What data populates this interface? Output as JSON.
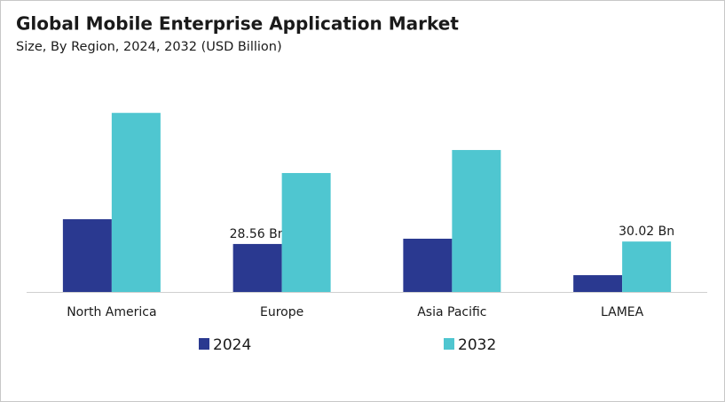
{
  "chart_data": {
    "type": "bar",
    "title": "Global Mobile Enterprise Application Market",
    "subtitle": "Size, By Region, 2024, 2032 (USD Billion)",
    "categories": [
      "North America",
      "Europe",
      "Asia Pacific",
      "LAMEA"
    ],
    "series": [
      {
        "name": "2024",
        "color": "#2a3990",
        "values": [
          43.3,
          28.56,
          31.7,
          10.0
        ],
        "value_labels": [
          null,
          "28.56 Bn",
          null,
          null
        ]
      },
      {
        "name": "2032",
        "color": "#4fc6d0",
        "values": [
          106.6,
          70.8,
          84.5,
          30.02
        ],
        "value_labels": [
          null,
          null,
          null,
          "30.02 Bn"
        ]
      }
    ]
  }
}
